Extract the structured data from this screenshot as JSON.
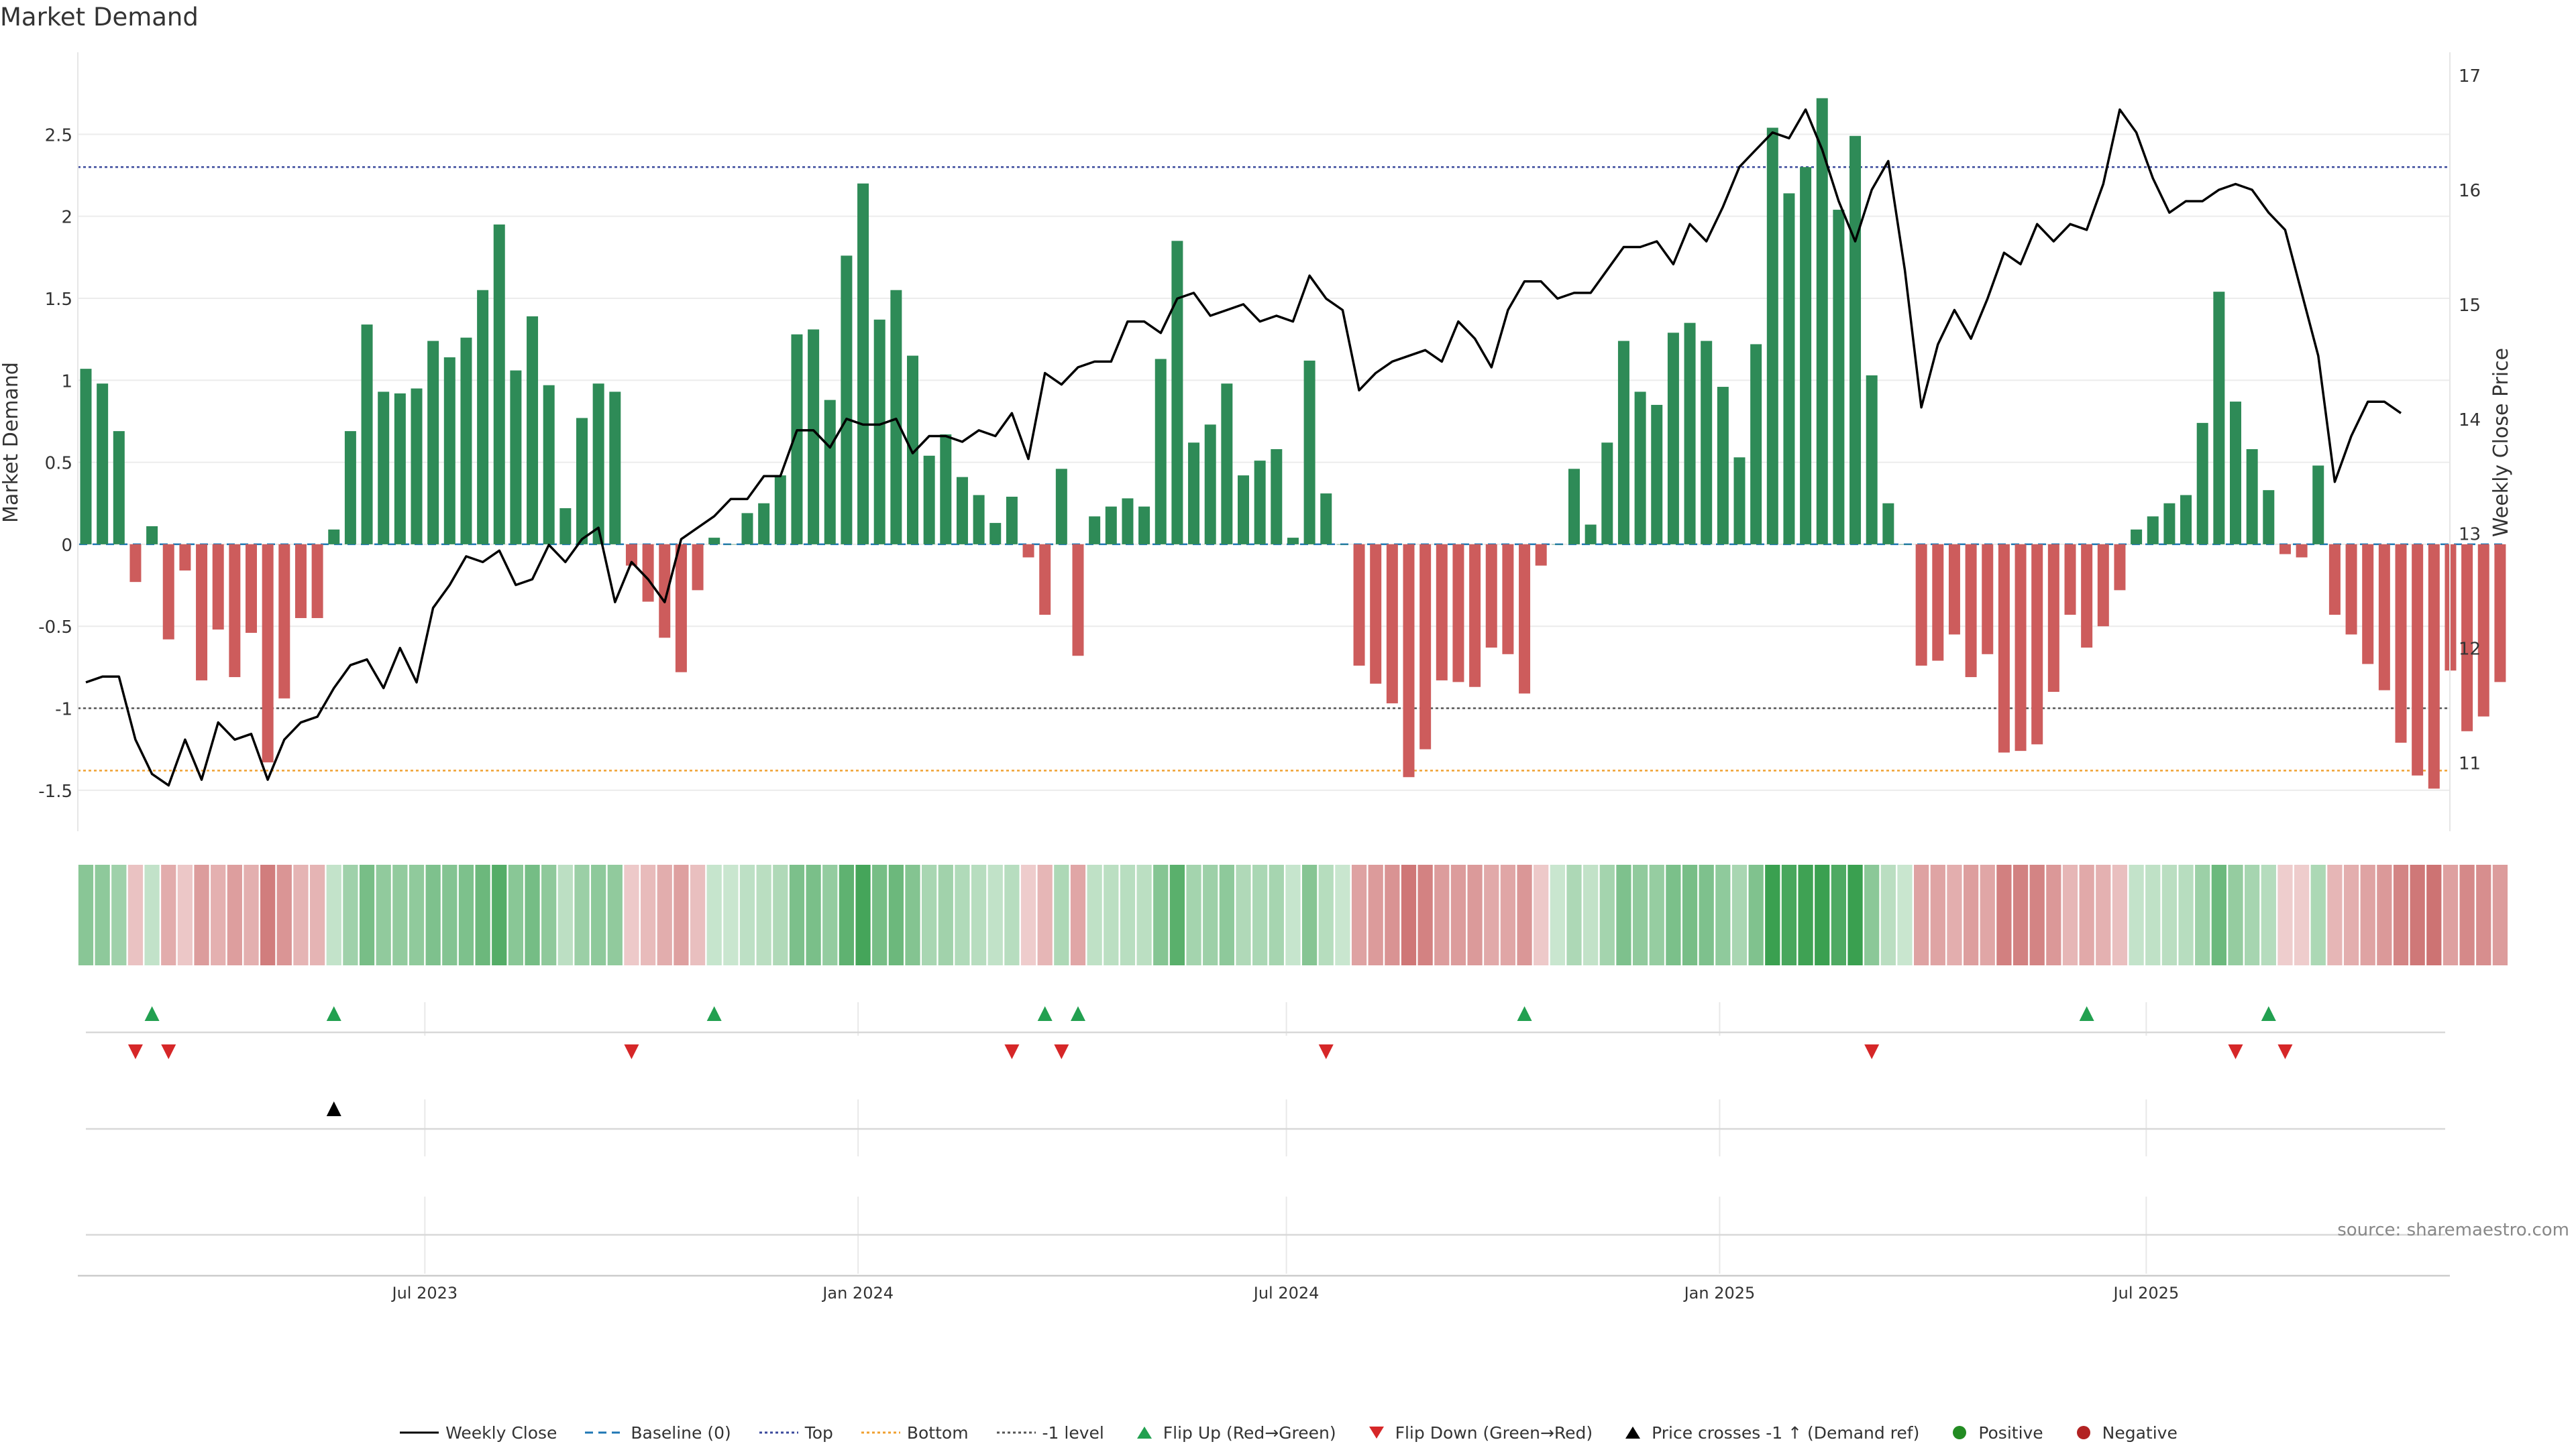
{
  "chart_data": {
    "type": "bar",
    "title": "Market Demand",
    "ylabel": "Market Demand",
    "y2label": "Weekly Close Price",
    "ylim": [
      -1.75,
      3.0
    ],
    "y2lim": [
      10.4,
      17.2
    ],
    "yticks": [
      "-1.5",
      "-1",
      "-0.5",
      "0",
      "0.5",
      "1",
      "1.5",
      "2",
      "2.5"
    ],
    "y2ticks": [
      "11",
      "12",
      "13",
      "14",
      "15",
      "16",
      "17"
    ],
    "reference_lines": {
      "top": 2.3,
      "bottom": -1.38,
      "minus_one": -1.0,
      "baseline": 0
    },
    "x_tick_labels": [
      {
        "label": "Jul 2023",
        "week": 20.5
      },
      {
        "label": "Jan 2024",
        "week": 46.7
      },
      {
        "label": "Jul 2024",
        "week": 72.6
      },
      {
        "label": "Jan 2025",
        "week": 98.8
      },
      {
        "label": "Jul 2025",
        "week": 124.6
      }
    ],
    "series": [
      {
        "name": "Market Demand",
        "unit": "demand",
        "values": [
          1.07,
          0.98,
          0.69,
          -0.23,
          0.11,
          -0.58,
          -0.16,
          -0.83,
          -0.52,
          -0.81,
          -0.54,
          -1.33,
          -0.94,
          -0.45,
          -0.45,
          0.09,
          0.69,
          1.34,
          0.93,
          0.92,
          0.95,
          1.24,
          1.14,
          1.26,
          1.55,
          1.95,
          1.06,
          1.39,
          0.97,
          0.22,
          0.77,
          0.98,
          0.93,
          -0.13,
          -0.35,
          -0.57,
          -0.78,
          -0.28,
          0.04,
          0,
          0.19,
          0.25,
          0.42,
          1.28,
          1.31,
          0.88,
          1.76,
          2.2,
          1.37,
          1.55,
          1.15,
          0.54,
          0.67,
          0.41,
          0.3,
          0.13,
          0.29,
          -0.08,
          -0.43,
          0.46,
          -0.68,
          0.17,
          0.23,
          0.28,
          0.23,
          1.13,
          1.85,
          0.62,
          0.73,
          0.98,
          0.42,
          0.51,
          0.58,
          0.04,
          1.12,
          0.31,
          0,
          -0.74,
          -0.85,
          -0.97,
          -1.42,
          -1.25,
          -0.83,
          -0.84,
          -0.87,
          -0.63,
          -0.67,
          -0.91,
          -0.13,
          0,
          0.46,
          0.12,
          0.62,
          1.24,
          0.93,
          0.85,
          1.29,
          1.35,
          1.24,
          0.96,
          0.53,
          1.22,
          2.54,
          2.14,
          2.3,
          2.72,
          2.04,
          2.49,
          1.03,
          0.25,
          0,
          -0.74,
          -0.71,
          -0.55,
          -0.81,
          -0.67,
          -1.27,
          -1.26,
          -1.22,
          -0.9,
          -0.43,
          -0.63,
          -0.5,
          -0.28,
          0.09,
          0.17,
          0.25,
          0.3,
          0.74,
          1.54,
          0.87,
          0.58,
          0.33,
          -0.06,
          -0.08,
          0.48,
          -0.43,
          -0.55,
          -0.73,
          -0.89,
          -1.21,
          -1.41,
          -1.49,
          -0.77,
          -1.14,
          -1.05,
          -0.84
        ]
      },
      {
        "name": "Weekly Close",
        "unit": "price",
        "values": [
          11.7,
          11.75,
          11.75,
          11.2,
          10.9,
          10.8,
          11.2,
          10.85,
          11.35,
          11.2,
          11.25,
          10.85,
          11.2,
          11.35,
          11.4,
          11.65,
          11.85,
          11.9,
          11.65,
          12.0,
          11.7,
          12.35,
          12.55,
          12.8,
          12.75,
          12.85,
          12.55,
          12.6,
          12.9,
          12.75,
          12.95,
          13.05,
          12.4,
          12.75,
          12.6,
          12.4,
          12.95,
          13.05,
          13.15,
          13.3,
          13.3,
          13.5,
          13.5,
          13.9,
          13.9,
          13.75,
          14.0,
          13.95,
          13.95,
          14.0,
          13.7,
          13.85,
          13.85,
          13.8,
          13.9,
          13.85,
          14.05,
          13.65,
          14.4,
          14.3,
          14.45,
          14.5,
          14.5,
          14.85,
          14.85,
          14.75,
          15.05,
          15.1,
          14.9,
          14.95,
          15.0,
          14.85,
          14.9,
          14.85,
          15.25,
          15.05,
          14.95,
          14.25,
          14.4,
          14.5,
          14.55,
          14.6,
          14.5,
          14.85,
          14.7,
          14.45,
          14.95,
          15.2,
          15.2,
          15.05,
          15.1,
          15.1,
          15.3,
          15.5,
          15.5,
          15.55,
          15.35,
          15.7,
          15.55,
          15.85,
          16.2,
          16.35,
          16.5,
          16.45,
          16.7,
          16.35,
          15.9,
          15.55,
          16.0,
          16.25,
          15.3,
          14.1,
          14.65,
          14.95,
          14.7,
          15.05,
          15.45,
          15.35,
          15.7,
          15.55,
          15.7,
          15.65,
          16.05,
          16.7,
          16.5,
          16.1,
          15.8,
          15.9,
          15.9,
          16.0,
          16.05,
          16.0,
          15.8,
          15.65,
          15.1,
          14.55,
          13.45,
          13.85,
          14.15,
          14.15,
          14.05
        ]
      }
    ],
    "demand_ref_cross_up_weeks": [
      15
    ],
    "flip_up_weeks": [
      4,
      15,
      38,
      58,
      60,
      87,
      121,
      132
    ],
    "flip_down_weeks": [
      3,
      5,
      33,
      56,
      59,
      75,
      108,
      130,
      133
    ]
  },
  "chart": {
    "title": "Market Demand",
    "source": "source: sharemaestro.com"
  },
  "legend": [
    {
      "key": "weekly_close",
      "label": "Weekly Close"
    },
    {
      "key": "baseline",
      "label": "Baseline (0)"
    },
    {
      "key": "top",
      "label": "Top"
    },
    {
      "key": "bottom",
      "label": "Bottom"
    },
    {
      "key": "minus_one",
      "label": "-1 level"
    },
    {
      "key": "flip_up",
      "label": "Flip Up (Red→Green)"
    },
    {
      "key": "flip_down",
      "label": "Flip Down (Green→Red)"
    },
    {
      "key": "cross",
      "label": "Price crosses -1 ↑ (Demand ref)"
    },
    {
      "key": "positive",
      "label": "Positive"
    },
    {
      "key": "negative",
      "label": "Negative"
    }
  ],
  "colors": {
    "positive": "#2e8b57",
    "negative": "#cd5c5c",
    "price_line": "#000000",
    "top": "#3b4a9c",
    "bottom": "#f0a030",
    "minus_one": "#555555",
    "baseline": "#1f77b4",
    "flip_up": "#22a050",
    "flip_down": "#d62728",
    "legend_positive": "#228b22",
    "legend_negative": "#b22222"
  }
}
